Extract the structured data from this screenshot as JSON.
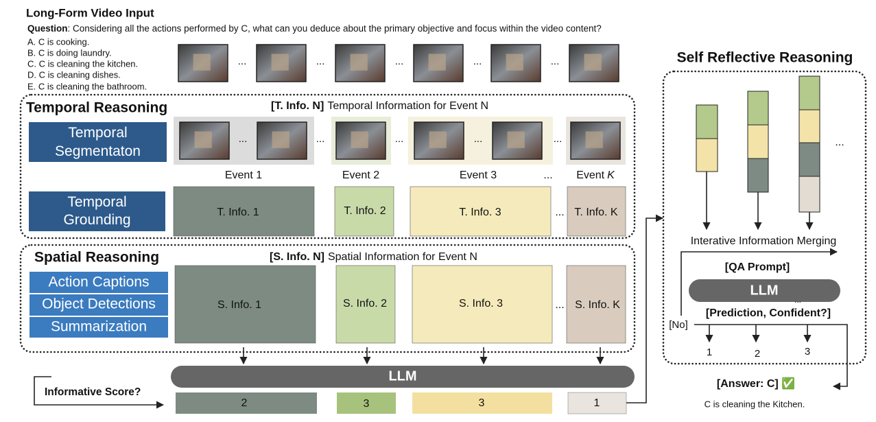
{
  "header": {
    "title": "Long-Form Video Input",
    "question_label": "Question",
    "question_text": ": Considering all the actions performed by C, what can you deduce about the primary objective and focus within the video content?",
    "options": [
      "A. C is cooking.",
      "B. C is doing laundry.",
      "C. C is cleaning the kitchen.",
      "D. C is cleaning dishes.",
      "E. C is cleaning the bathroom."
    ]
  },
  "ellipsis": "...",
  "temporal": {
    "title": "Temporal Reasoning",
    "legend_key": "[T. Info. N]",
    "legend_text": "Temporal Information for Event N",
    "modules": [
      "Temporal Segmentaton",
      "Temporal Grounding"
    ],
    "events": [
      "Event 1",
      "Event 2",
      "Event 3"
    ],
    "event_k": {
      "word": "Event",
      "index": "K"
    },
    "infos": [
      "T. Info. 1",
      "T. Info. 2",
      "T. Info. 3",
      "T. Info. K"
    ]
  },
  "spatial": {
    "title": "Spatial Reasoning",
    "legend_key": "[S. Info. N]",
    "legend_text": "Spatial Information for Event N",
    "modules": [
      "Action Captions",
      "Object Detections",
      "Summarization"
    ],
    "infos": [
      "S. Info. 1",
      "S. Info. 2",
      "S. Info. 3",
      "S. Info. K"
    ]
  },
  "scoring": {
    "llm": "LLM",
    "label": "Informative Score?",
    "scores": [
      2,
      3,
      3,
      1
    ]
  },
  "reflection": {
    "title": "Self Reflective Reasoning",
    "merging": "Interative Information Merging",
    "prompt": "[QA Prompt]",
    "llm": "LLM",
    "prediction": "[Prediction, Confident?]",
    "no": "[No]",
    "outcomes": [
      1,
      2,
      3
    ],
    "answer": "[Answer: C] ✅",
    "answer_text": "C is cleaning the Kitchen."
  }
}
